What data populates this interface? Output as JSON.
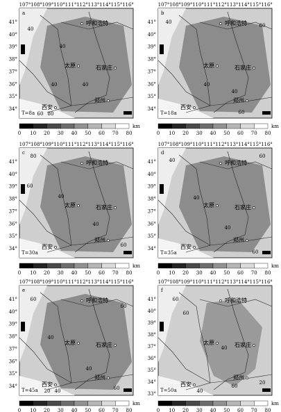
{
  "longitudes": [
    "107°",
    "108°",
    "109°",
    "110°",
    "111°",
    "112°",
    "113°",
    "114°",
    "115°",
    "116°"
  ],
  "colorbar": {
    "ticks": [
      "0",
      "10",
      "20",
      "30",
      "40",
      "50",
      "60",
      "70",
      "80"
    ],
    "unit": "km"
  },
  "cities": [
    "呼和浩特",
    "太原",
    "石家庄",
    "西安",
    "郑州"
  ],
  "panels": [
    {
      "letter": "a",
      "time": "T=8a",
      "latitudes": [
        "41°",
        "40°",
        "39°",
        "38°",
        "37°",
        "36°",
        "35°",
        "34°"
      ],
      "contours": [
        "40",
        "40",
        "40",
        "40",
        "60",
        "80"
      ]
    },
    {
      "letter": "b",
      "time": "T=18a",
      "latitudes": [
        "41°",
        "40°",
        "39°",
        "38°",
        "37°",
        "36°",
        "35°",
        "34°"
      ],
      "contours": [
        "40",
        "60",
        "40",
        "40",
        "60"
      ]
    },
    {
      "letter": "c",
      "time": "T=30a",
      "latitudes": [
        "41°",
        "40°",
        "39°",
        "38°",
        "37°",
        "36°",
        "35°",
        "34°"
      ],
      "contours": [
        "80",
        "60",
        "40",
        "40",
        "60"
      ]
    },
    {
      "letter": "d",
      "time": "T=35a",
      "latitudes": [
        "41°",
        "40°",
        "39°",
        "38°",
        "37°",
        "36°",
        "35°",
        "34°"
      ],
      "contours": [
        "40",
        "60",
        "40",
        "40",
        "60"
      ]
    },
    {
      "letter": "e",
      "time": "T=45a",
      "latitudes": [
        "41°",
        "40°",
        "39°",
        "38°",
        "37°",
        "36°",
        "35°",
        "34°"
      ],
      "contours": [
        "60",
        "60",
        "40",
        "40",
        "60",
        "20",
        "40"
      ]
    },
    {
      "letter": "f",
      "time": "T=50a",
      "latitudes": [
        "41°",
        "40°",
        "39°",
        "38°",
        "37°",
        "36°",
        "35°",
        "34°",
        "33°"
      ],
      "contours": [
        "60",
        "60",
        "40",
        "60",
        "20",
        "40"
      ]
    }
  ]
}
